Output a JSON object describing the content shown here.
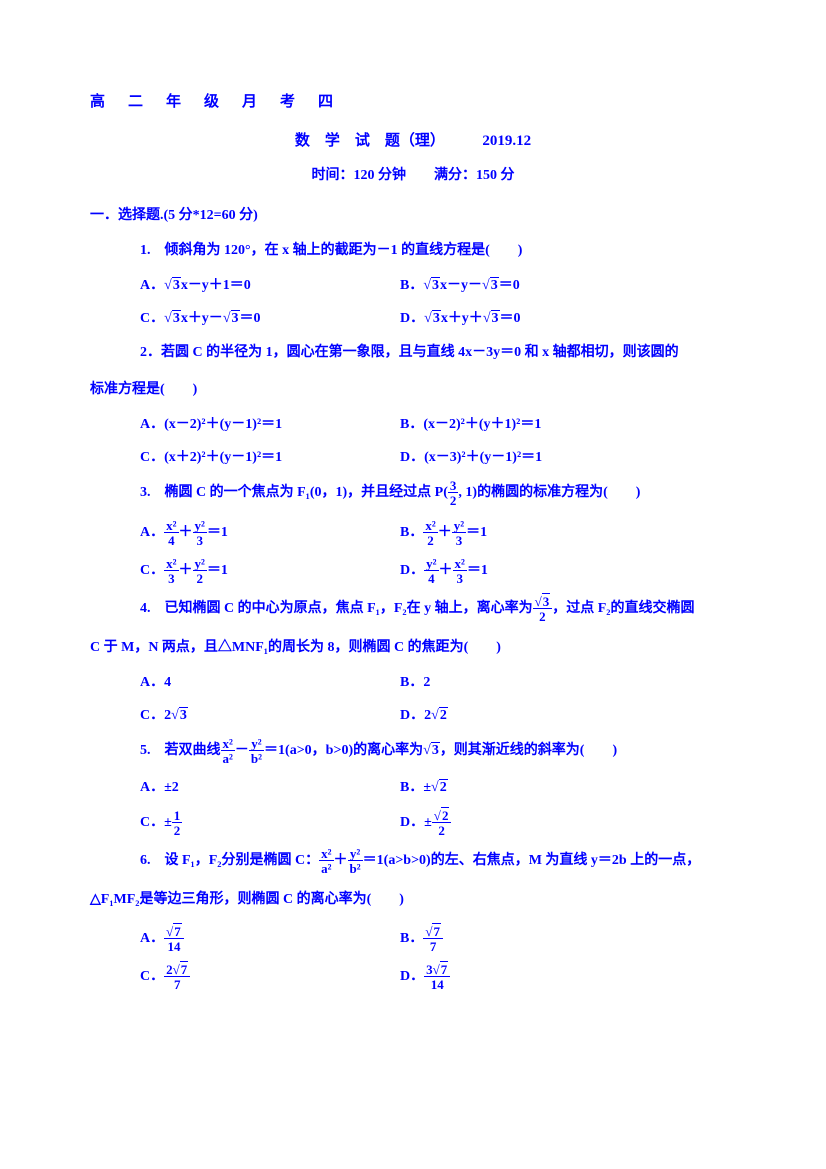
{
  "doc": {
    "title": "高　二　年　级　月　考　四",
    "subtitle": "数　学　试　题（理）　　　2019.12",
    "time_line": "时间：120 分钟　　满分：150 分",
    "section1": "一．选择题.(5 分*12=60 分)",
    "text_color": "#0000ff",
    "bg_color": "#ffffff"
  },
  "q1": {
    "stem": "1.　倾斜角为 120°，在 x 轴上的截距为－1 的直线方程是(　　)",
    "A_pre": "A．",
    "A_rad": "3",
    "A_post": "x－y＋1＝0",
    "B_pre": "B．",
    "B_rad": "3",
    "B_post": "x－y－",
    "B_rad2": "3",
    "B_end": "＝0",
    "C_pre": "C．",
    "C_rad": "3",
    "C_post": "x＋y－",
    "C_rad2": "3",
    "C_end": "＝0",
    "D_pre": "D．",
    "D_rad": "3",
    "D_post": "x＋y＋",
    "D_rad2": "3",
    "D_end": "＝0"
  },
  "q2": {
    "stem1": "2．若圆 C 的半径为 1，圆心在第一象限，且与直线 4x－3y＝0 和 x 轴都相切，则该圆的",
    "stem2": "标准方程是(　　)",
    "A": "A．(x－2)²＋(y－1)²＝1",
    "B": "B．(x－2)²＋(y＋1)²＝1",
    "C": "C．(x＋2)²＋(y－1)²＝1",
    "D": "D．(x－3)²＋(y－1)²＝1"
  },
  "q3": {
    "stem_pre": "3.　椭圆 C 的一个焦点为 F₁(0，1)，并且经过点 P(",
    "stem_num": "3",
    "stem_den": "2",
    "stem_post": ", 1)的椭圆的标准方程为(　　)",
    "A_pre": "A．",
    "A_n1": "x²",
    "A_d1": "4",
    "A_plus": "＋",
    "A_n2": "y²",
    "A_d2": "3",
    "A_eq": "＝1",
    "B_pre": "B．",
    "B_n1": "x²",
    "B_d1": "2",
    "B_plus": "＋",
    "B_n2": "y²",
    "B_d2": "3",
    "B_eq": "＝1",
    "C_pre": "C．",
    "C_n1": "x²",
    "C_d1": "3",
    "C_plus": "＋",
    "C_n2": "y²",
    "C_d2": "2",
    "C_eq": "＝1",
    "D_pre": "D．",
    "D_n1": "y²",
    "D_d1": "4",
    "D_plus": "＋",
    "D_n2": "x²",
    "D_d2": "3",
    "D_eq": "＝1"
  },
  "q4": {
    "stem_pre": "4.　已知椭圆 C 的中心为原点，焦点 F₁，F₂在 y 轴上，离心率为",
    "stem_rad": "3",
    "stem_den": "2",
    "stem_post": "，过点 F₂的直线交椭圆",
    "stem2": "C 于 M，N 两点，且△MNF₁的周长为 8，则椭圆 C 的焦距为(　　)",
    "A": "A．4",
    "B": "B．2",
    "C_pre": "C．2",
    "C_rad": "3",
    "D_pre": "D．2",
    "D_rad": "2"
  },
  "q5": {
    "stem_pre": "5.　若双曲线",
    "n1": "x²",
    "d1": "a²",
    "minus": "－",
    "n2": "y²",
    "d2": "b²",
    "stem_mid": "＝1(a>0，b>0)的离心率为",
    "rad": "3",
    "stem_post": "，则其渐近线的斜率为(　　)",
    "A": "A．±2",
    "B_pre": "B．±",
    "B_rad": "2",
    "C_pre": "C．±",
    "C_num": "1",
    "C_den": "2",
    "D_pre": "D．±",
    "D_rad": "2",
    "D_den": "2"
  },
  "q6": {
    "stem_pre": "6.　设 F₁，F₂分别是椭圆 C：",
    "n1": "x²",
    "d1": "a²",
    "plus": "＋",
    "n2": "y²",
    "d2": "b²",
    "stem_post": "＝1(a>b>0)的左、右焦点，M 为直线 y＝2b 上的一点，",
    "stem2": "△F₁MF₂是等边三角形，则椭圆 C 的离心率为(　　)",
    "A_pre": "A．",
    "A_rad": "7",
    "A_den": "14",
    "B_pre": "B．",
    "B_rad": "7",
    "B_den": "7",
    "C_pre": "C．",
    "C_coef": "2",
    "C_rad": "7",
    "C_den": "7",
    "D_pre": "D．",
    "D_coef": "3",
    "D_rad": "7",
    "D_den": "14"
  }
}
